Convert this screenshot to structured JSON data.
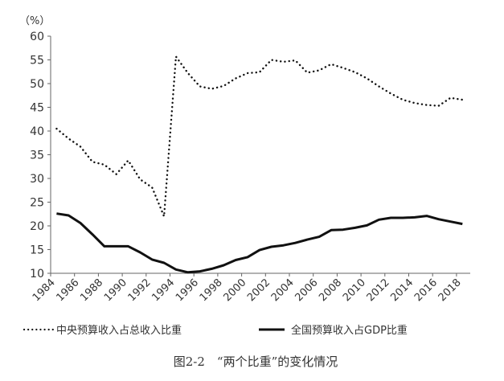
{
  "chart_data": {
    "type": "line",
    "title": "图2-2　“两个比重”的变化情况",
    "ylabel": "（%）",
    "xlabel": "",
    "ylim": [
      10,
      60
    ],
    "yticks": [
      10,
      15,
      20,
      25,
      30,
      35,
      40,
      45,
      50,
      55,
      60
    ],
    "xticks": [
      "1984",
      "1986",
      "1988",
      "1990",
      "1992",
      "1994",
      "1996",
      "1998",
      "2000",
      "2002",
      "2004",
      "2006",
      "2008",
      "2010",
      "2012",
      "2014",
      "2016",
      "2018"
    ],
    "grid": false,
    "legend_position": "bottom",
    "x": [
      1984,
      1985,
      1986,
      1987,
      1988,
      1989,
      1990,
      1991,
      1992,
      1993,
      1994,
      1995,
      1996,
      1997,
      1998,
      1999,
      2000,
      2001,
      2002,
      2003,
      2004,
      2005,
      2006,
      2007,
      2008,
      2009,
      2010,
      2011,
      2012,
      2013,
      2014,
      2015,
      2016,
      2017,
      2018
    ],
    "series": [
      {
        "name": "中央预算收入占总收入比重",
        "style": "dotted",
        "values": [
          40.5,
          38.4,
          36.7,
          33.5,
          32.9,
          30.9,
          33.8,
          29.8,
          28.1,
          22.0,
          55.7,
          52.2,
          49.4,
          48.9,
          49.5,
          51.1,
          52.2,
          52.4,
          55.0,
          54.6,
          54.9,
          52.3,
          52.8,
          54.1,
          53.3,
          52.4,
          51.1,
          49.4,
          47.9,
          46.6,
          45.9,
          45.5,
          45.3,
          47.0,
          46.6
        ]
      },
      {
        "name": "全国预算收入占GDP比重",
        "style": "solid",
        "values": [
          22.6,
          22.2,
          20.6,
          18.2,
          15.7,
          15.7,
          15.7,
          14.4,
          12.9,
          12.2,
          10.8,
          10.2,
          10.4,
          10.95,
          11.7,
          12.8,
          13.4,
          14.9,
          15.6,
          15.9,
          16.4,
          17.1,
          17.7,
          19.1,
          19.2,
          19.6,
          20.1,
          21.3,
          21.7,
          21.7,
          21.8,
          22.1,
          21.4,
          20.9,
          20.4
        ]
      }
    ],
    "colors": {
      "line": "#111111",
      "axis": "#666666"
    }
  }
}
